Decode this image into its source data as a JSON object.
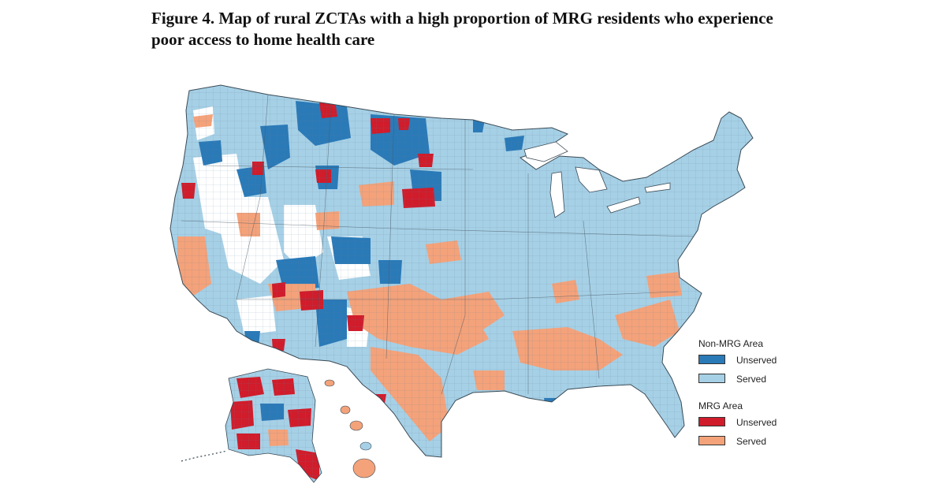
{
  "figure": {
    "title_line1": "Figure 4. Map of rural ZCTAs with a high proportion of MRG residents who experience",
    "title_line2": "poor access to home health care"
  },
  "legend": {
    "non_mrg": {
      "title": "Non-MRG Area",
      "unserved_label": "Unserved",
      "served_label": "Served"
    },
    "mrg": {
      "title": "MRG Area",
      "unserved_label": "Unserved",
      "served_label": "Served"
    }
  },
  "colors": {
    "non_mrg_unserved": "#2a7ab8",
    "non_mrg_served": "#a6d0e6",
    "mrg_unserved": "#d01c2b",
    "mrg_served": "#f4a27a",
    "boundary": "#4a5a66",
    "background": "#ffffff"
  }
}
